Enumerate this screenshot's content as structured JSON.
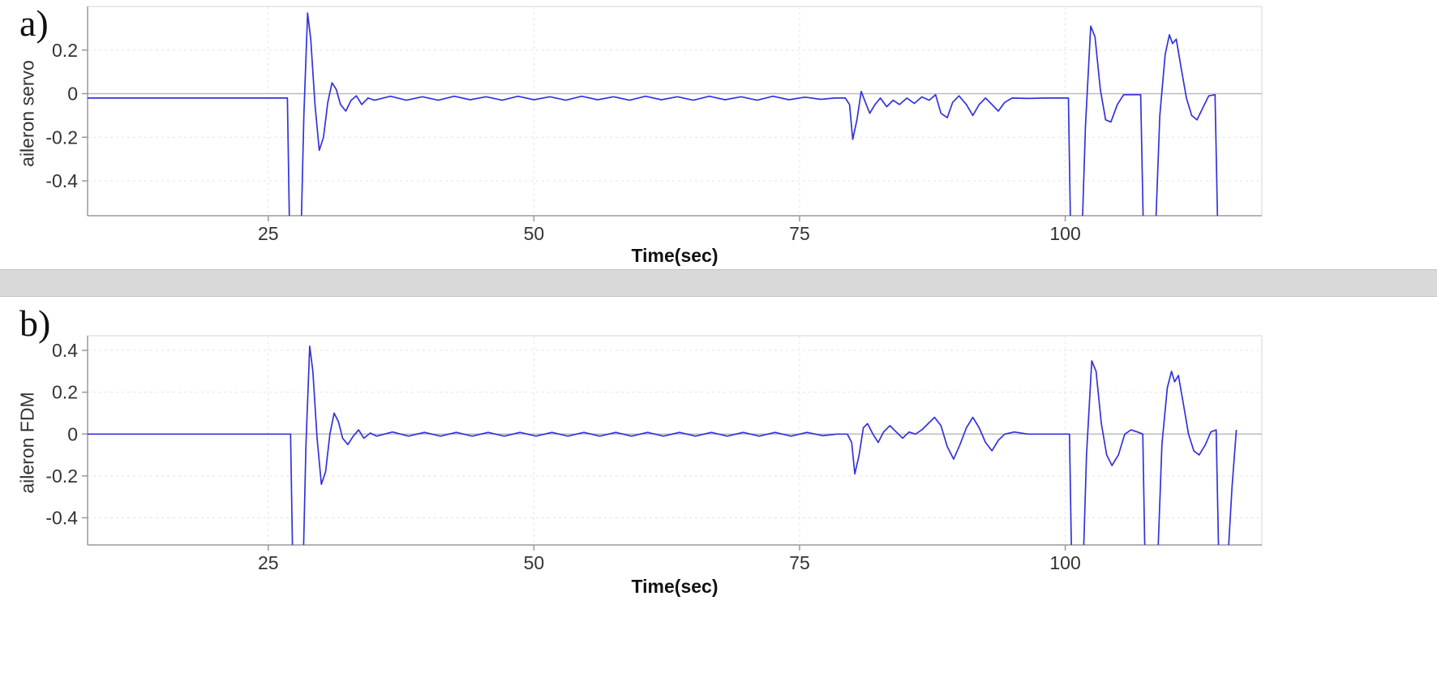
{
  "style": {
    "line_color": "#3232dd",
    "grid_color": "#e4e4e4",
    "zero_line_color": "#bcbcbc",
    "axis_color": "#9a9a9a",
    "border_color": "#d4d4d4",
    "tick_text_color": "#333333",
    "divider_color": "#d9d9d9",
    "background": "#ffffff"
  },
  "panels": [
    {
      "corner_label": "a)",
      "ylabel": "aileron servo",
      "xlabel": "Time(sec)"
    },
    {
      "corner_label": "b)",
      "ylabel": "aileron FDM",
      "xlabel": "Time(sec)"
    }
  ],
  "chart_data": [
    {
      "type": "line",
      "title": "",
      "xlabel": "Time(sec)",
      "ylabel": "aileron servo",
      "xlim": [
        8,
        118.5
      ],
      "ylim": [
        -0.56,
        0.4
      ],
      "xticks": [
        25,
        50,
        75,
        100
      ],
      "yticks": [
        0.2,
        0,
        -0.2,
        -0.4
      ],
      "grid": true,
      "legend": null,
      "series": [
        {
          "name": "aileron servo",
          "color": "#3232dd",
          "points": [
            [
              8,
              -0.02
            ],
            [
              24,
              -0.02
            ],
            [
              26.8,
              -0.02
            ],
            [
              27.0,
              -0.62
            ],
            [
              28.1,
              -0.62
            ],
            [
              28.35,
              -0.1
            ],
            [
              28.7,
              0.37
            ],
            [
              29.0,
              0.25
            ],
            [
              29.4,
              -0.05
            ],
            [
              29.8,
              -0.26
            ],
            [
              30.2,
              -0.2
            ],
            [
              30.6,
              -0.04
            ],
            [
              31.0,
              0.05
            ],
            [
              31.4,
              0.02
            ],
            [
              31.8,
              -0.05
            ],
            [
              32.3,
              -0.08
            ],
            [
              32.8,
              -0.03
            ],
            [
              33.3,
              -0.01
            ],
            [
              33.8,
              -0.05
            ],
            [
              34.4,
              -0.02
            ],
            [
              35.0,
              -0.03
            ],
            [
              36.5,
              -0.012
            ],
            [
              38.0,
              -0.03
            ],
            [
              39.5,
              -0.014
            ],
            [
              41.0,
              -0.03
            ],
            [
              42.5,
              -0.012
            ],
            [
              44.0,
              -0.028
            ],
            [
              45.5,
              -0.014
            ],
            [
              47.0,
              -0.03
            ],
            [
              48.5,
              -0.012
            ],
            [
              50.0,
              -0.028
            ],
            [
              51.5,
              -0.014
            ],
            [
              53.0,
              -0.03
            ],
            [
              54.5,
              -0.012
            ],
            [
              56.0,
              -0.028
            ],
            [
              57.5,
              -0.014
            ],
            [
              59.0,
              -0.03
            ],
            [
              60.5,
              -0.012
            ],
            [
              62.0,
              -0.028
            ],
            [
              63.5,
              -0.014
            ],
            [
              65.0,
              -0.03
            ],
            [
              66.5,
              -0.012
            ],
            [
              68.0,
              -0.028
            ],
            [
              69.5,
              -0.014
            ],
            [
              71.0,
              -0.03
            ],
            [
              72.5,
              -0.012
            ],
            [
              74.0,
              -0.028
            ],
            [
              75.5,
              -0.016
            ],
            [
              77.0,
              -0.026
            ],
            [
              78.3,
              -0.02
            ],
            [
              79.3,
              -0.02
            ],
            [
              79.7,
              -0.05
            ],
            [
              80.0,
              -0.21
            ],
            [
              80.4,
              -0.12
            ],
            [
              80.8,
              0.01
            ],
            [
              81.2,
              -0.04
            ],
            [
              81.6,
              -0.09
            ],
            [
              82.1,
              -0.05
            ],
            [
              82.6,
              -0.02
            ],
            [
              83.2,
              -0.06
            ],
            [
              83.8,
              -0.03
            ],
            [
              84.4,
              -0.05
            ],
            [
              85.1,
              -0.02
            ],
            [
              85.8,
              -0.045
            ],
            [
              86.5,
              -0.015
            ],
            [
              87.2,
              -0.03
            ],
            [
              87.8,
              -0.005
            ],
            [
              88.3,
              -0.09
            ],
            [
              88.9,
              -0.11
            ],
            [
              89.4,
              -0.04
            ],
            [
              90.0,
              -0.01
            ],
            [
              90.7,
              -0.05
            ],
            [
              91.3,
              -0.1
            ],
            [
              91.9,
              -0.05
            ],
            [
              92.5,
              -0.02
            ],
            [
              93.1,
              -0.05
            ],
            [
              93.7,
              -0.08
            ],
            [
              94.3,
              -0.04
            ],
            [
              95.0,
              -0.02
            ],
            [
              96.5,
              -0.022
            ],
            [
              98.0,
              -0.02
            ],
            [
              99.5,
              -0.02
            ],
            [
              100.3,
              -0.02
            ],
            [
              100.5,
              -0.62
            ],
            [
              101.6,
              -0.62
            ],
            [
              101.9,
              -0.15
            ],
            [
              102.4,
              0.31
            ],
            [
              102.8,
              0.26
            ],
            [
              103.3,
              0.02
            ],
            [
              103.8,
              -0.12
            ],
            [
              104.3,
              -0.13
            ],
            [
              104.9,
              -0.05
            ],
            [
              105.5,
              -0.005
            ],
            [
              106.3,
              -0.005
            ],
            [
              107.1,
              -0.005
            ],
            [
              107.35,
              -0.62
            ],
            [
              108.5,
              -0.62
            ],
            [
              108.9,
              -0.1
            ],
            [
              109.4,
              0.18
            ],
            [
              109.8,
              0.27
            ],
            [
              110.1,
              0.23
            ],
            [
              110.45,
              0.25
            ],
            [
              110.9,
              0.12
            ],
            [
              111.4,
              -0.02
            ],
            [
              111.9,
              -0.1
            ],
            [
              112.4,
              -0.12
            ],
            [
              113.0,
              -0.06
            ],
            [
              113.5,
              -0.01
            ],
            [
              114.1,
              -0.005
            ],
            [
              114.35,
              -0.62
            ],
            [
              115.4,
              -0.62
            ]
          ]
        }
      ]
    },
    {
      "type": "line",
      "title": "",
      "xlabel": "Time(sec)",
      "ylabel": "aileron FDM",
      "xlim": [
        8,
        118.5
      ],
      "ylim": [
        -0.53,
        0.47
      ],
      "xticks": [
        25,
        50,
        75,
        100
      ],
      "yticks": [
        0.4,
        0.2,
        0,
        -0.2,
        -0.4
      ],
      "grid": true,
      "legend": null,
      "series": [
        {
          "name": "aileron FDM",
          "color": "#3232dd",
          "points": [
            [
              8,
              0.0
            ],
            [
              24,
              0.0
            ],
            [
              27.1,
              0.0
            ],
            [
              27.3,
              -0.6
            ],
            [
              28.3,
              -0.6
            ],
            [
              28.55,
              -0.05
            ],
            [
              28.9,
              0.42
            ],
            [
              29.2,
              0.3
            ],
            [
              29.6,
              -0.02
            ],
            [
              30.0,
              -0.24
            ],
            [
              30.4,
              -0.18
            ],
            [
              30.8,
              0.0
            ],
            [
              31.2,
              0.1
            ],
            [
              31.6,
              0.06
            ],
            [
              32.0,
              -0.02
            ],
            [
              32.5,
              -0.05
            ],
            [
              33.0,
              -0.01
            ],
            [
              33.5,
              0.02
            ],
            [
              34.0,
              -0.02
            ],
            [
              34.6,
              0.005
            ],
            [
              35.2,
              -0.01
            ],
            [
              36.7,
              0.01
            ],
            [
              38.2,
              -0.01
            ],
            [
              39.7,
              0.008
            ],
            [
              41.2,
              -0.01
            ],
            [
              42.7,
              0.008
            ],
            [
              44.2,
              -0.01
            ],
            [
              45.7,
              0.008
            ],
            [
              47.2,
              -0.01
            ],
            [
              48.7,
              0.008
            ],
            [
              50.2,
              -0.01
            ],
            [
              51.7,
              0.008
            ],
            [
              53.2,
              -0.01
            ],
            [
              54.7,
              0.008
            ],
            [
              56.2,
              -0.01
            ],
            [
              57.7,
              0.008
            ],
            [
              59.2,
              -0.01
            ],
            [
              60.7,
              0.008
            ],
            [
              62.2,
              -0.01
            ],
            [
              63.7,
              0.008
            ],
            [
              65.2,
              -0.01
            ],
            [
              66.7,
              0.008
            ],
            [
              68.2,
              -0.01
            ],
            [
              69.7,
              0.008
            ],
            [
              71.2,
              -0.01
            ],
            [
              72.7,
              0.008
            ],
            [
              74.2,
              -0.01
            ],
            [
              75.7,
              0.008
            ],
            [
              77.2,
              -0.008
            ],
            [
              78.5,
              0.0
            ],
            [
              79.5,
              0.0
            ],
            [
              79.9,
              -0.04
            ],
            [
              80.2,
              -0.19
            ],
            [
              80.6,
              -0.1
            ],
            [
              81.0,
              0.03
            ],
            [
              81.4,
              0.05
            ],
            [
              81.9,
              0.0
            ],
            [
              82.4,
              -0.04
            ],
            [
              82.9,
              0.01
            ],
            [
              83.5,
              0.04
            ],
            [
              84.1,
              0.01
            ],
            [
              84.7,
              -0.02
            ],
            [
              85.3,
              0.01
            ],
            [
              85.9,
              0.0
            ],
            [
              86.5,
              0.02
            ],
            [
              87.1,
              0.05
            ],
            [
              87.7,
              0.08
            ],
            [
              88.3,
              0.04
            ],
            [
              88.9,
              -0.06
            ],
            [
              89.5,
              -0.12
            ],
            [
              90.1,
              -0.05
            ],
            [
              90.7,
              0.03
            ],
            [
              91.3,
              0.08
            ],
            [
              91.9,
              0.03
            ],
            [
              92.5,
              -0.04
            ],
            [
              93.1,
              -0.08
            ],
            [
              93.7,
              -0.03
            ],
            [
              94.3,
              0.0
            ],
            [
              95.2,
              0.01
            ],
            [
              96.5,
              0.0
            ],
            [
              98.0,
              0.0
            ],
            [
              99.5,
              0.0
            ],
            [
              100.4,
              0.0
            ],
            [
              100.6,
              -0.6
            ],
            [
              101.7,
              -0.6
            ],
            [
              102.0,
              -0.1
            ],
            [
              102.5,
              0.35
            ],
            [
              102.9,
              0.3
            ],
            [
              103.4,
              0.05
            ],
            [
              103.9,
              -0.1
            ],
            [
              104.4,
              -0.15
            ],
            [
              105.0,
              -0.1
            ],
            [
              105.6,
              0.0
            ],
            [
              106.2,
              0.02
            ],
            [
              106.8,
              0.01
            ],
            [
              107.3,
              0.0
            ],
            [
              107.5,
              -0.6
            ],
            [
              108.7,
              -0.6
            ],
            [
              109.1,
              -0.05
            ],
            [
              109.6,
              0.22
            ],
            [
              110.0,
              0.3
            ],
            [
              110.3,
              0.25
            ],
            [
              110.65,
              0.28
            ],
            [
              111.1,
              0.15
            ],
            [
              111.6,
              0.0
            ],
            [
              112.1,
              -0.08
            ],
            [
              112.6,
              -0.1
            ],
            [
              113.2,
              -0.05
            ],
            [
              113.7,
              0.01
            ],
            [
              114.2,
              0.02
            ],
            [
              114.45,
              -0.6
            ],
            [
              115.3,
              -0.6
            ],
            [
              115.7,
              -0.25
            ],
            [
              116.1,
              0.02
            ]
          ]
        }
      ]
    }
  ]
}
